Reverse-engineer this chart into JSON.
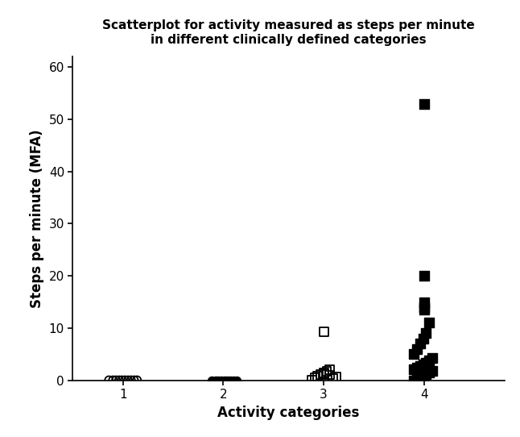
{
  "title_line1": "Scatterplot for activity measured as steps per minute",
  "title_line2": "in different clinically defined categories",
  "xlabel": "Activity categories",
  "ylabel": "Steps per minute (MFA)",
  "xlim": [
    0.5,
    4.8
  ],
  "ylim": [
    0,
    62
  ],
  "yticks": [
    0,
    10,
    20,
    30,
    40,
    50,
    60
  ],
  "xticks": [
    1,
    2,
    3,
    4
  ],
  "cat1_x_jitter": [
    -0.14,
    -0.1,
    -0.07,
    -0.04,
    -0.01,
    0.02,
    0.05,
    0.08,
    0.11,
    0.14
  ],
  "cat1_y": [
    0,
    0,
    0,
    0,
    0,
    0,
    0,
    0,
    0,
    0
  ],
  "cat2_x_jitter": [
    -0.12,
    -0.08,
    -0.05,
    -0.02,
    0.01,
    0.04,
    0.07,
    0.1,
    0.13
  ],
  "cat2_y": [
    0,
    0,
    0,
    0,
    0,
    0,
    0,
    0,
    0
  ],
  "cat3_x_jitter": [
    -0.12,
    -0.09,
    -0.06,
    -0.03,
    0.0,
    0.03,
    0.06,
    0.09,
    0.12,
    0.06,
    0.0,
    0.0
  ],
  "cat3_y": [
    0.0,
    0.5,
    0.8,
    1.1,
    1.4,
    1.7,
    2.0,
    0.3,
    0.6,
    1.0,
    1.3,
    9.3
  ],
  "cat4_x_jitter": [
    -0.1,
    -0.07,
    -0.04,
    -0.01,
    0.02,
    0.05,
    0.08,
    -0.1,
    -0.07,
    -0.04,
    -0.01,
    0.02,
    0.05,
    0.08,
    -0.1,
    -0.07,
    -0.04,
    -0.01,
    0.02,
    0.05,
    0.0,
    0.0,
    0.0,
    0.0,
    0.0
  ],
  "cat4_y": [
    0.0,
    0.3,
    0.6,
    0.9,
    1.2,
    1.5,
    1.8,
    2.1,
    2.4,
    2.7,
    3.0,
    3.4,
    3.8,
    4.2,
    5.0,
    6.0,
    7.0,
    8.0,
    9.0,
    11.0,
    13.5,
    14.0,
    15.0,
    20.0,
    53.0
  ],
  "background_color": "#ffffff",
  "marker_size_circle": 52,
  "marker_size_square": 60,
  "title_fontsize": 11,
  "label_fontsize": 12,
  "tick_fontsize": 11
}
